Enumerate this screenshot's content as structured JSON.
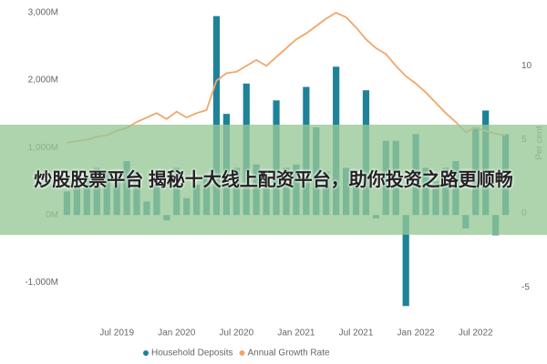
{
  "chart_data": {
    "type": "bar",
    "categories": [
      null,
      null,
      null,
      null,
      null,
      "Jul 2019",
      null,
      null,
      null,
      null,
      null,
      "Jan 2020",
      null,
      null,
      null,
      null,
      null,
      "Jul 2020",
      null,
      null,
      null,
      null,
      null,
      "Jan 2021",
      null,
      null,
      null,
      null,
      null,
      "Jul 2021",
      null,
      null,
      null,
      null,
      null,
      "Jan 2022",
      null,
      null,
      null,
      null,
      null,
      "Jul 2022",
      null,
      null,
      null
    ],
    "series": [
      {
        "name": "Household Deposits",
        "type": "bar",
        "color": "#1f8299",
        "axis": "y",
        "values": [
          350,
          450,
          550,
          700,
          650,
          600,
          800,
          650,
          200,
          550,
          -80,
          700,
          250,
          450,
          550,
          2950,
          1500,
          700,
          1950,
          750,
          550,
          1700,
          700,
          750,
          1900,
          1300,
          650,
          2200,
          700,
          600,
          1850,
          -50,
          1100,
          1100,
          -1350,
          1200,
          700,
          500,
          700,
          800,
          -200,
          1300,
          1550,
          -300,
          1200
        ]
      },
      {
        "name": "Annual Growth Rate",
        "type": "line",
        "color": "#f2a66a",
        "axis": "y2",
        "values": [
          4.8,
          4.9,
          5.0,
          5.2,
          5.3,
          5.6,
          5.8,
          6.2,
          6.5,
          6.8,
          6.4,
          6.9,
          6.5,
          6.8,
          7.0,
          9.0,
          9.5,
          9.6,
          10.0,
          10.4,
          10.0,
          10.6,
          11.2,
          11.8,
          12.2,
          12.7,
          13.2,
          13.6,
          13.3,
          12.6,
          11.8,
          11.2,
          10.8,
          10.0,
          9.3,
          8.8,
          8.2,
          7.5,
          6.8,
          6.2,
          5.5,
          5.8,
          5.6,
          5.4,
          5.3
        ]
      }
    ],
    "ylim": [
      -1400,
      3000
    ],
    "yticks": [
      {
        "value": -1000,
        "label": "-1,000M"
      },
      {
        "value": 0,
        "label": "0M"
      },
      {
        "value": 1000,
        "label": "1,000M"
      },
      {
        "value": 2000,
        "label": "2,000M"
      },
      {
        "value": 3000,
        "label": "3,000M"
      }
    ],
    "y2lim": [
      -6.5,
      13.6
    ],
    "y2ticks": [
      -5,
      0,
      5,
      10
    ],
    "y2label": "Per cent",
    "grid": false,
    "legend": "bottom"
  },
  "overlay_text": "炒股股票平台 揭秘十大线上配资平台，助你投资之路更顺畅"
}
